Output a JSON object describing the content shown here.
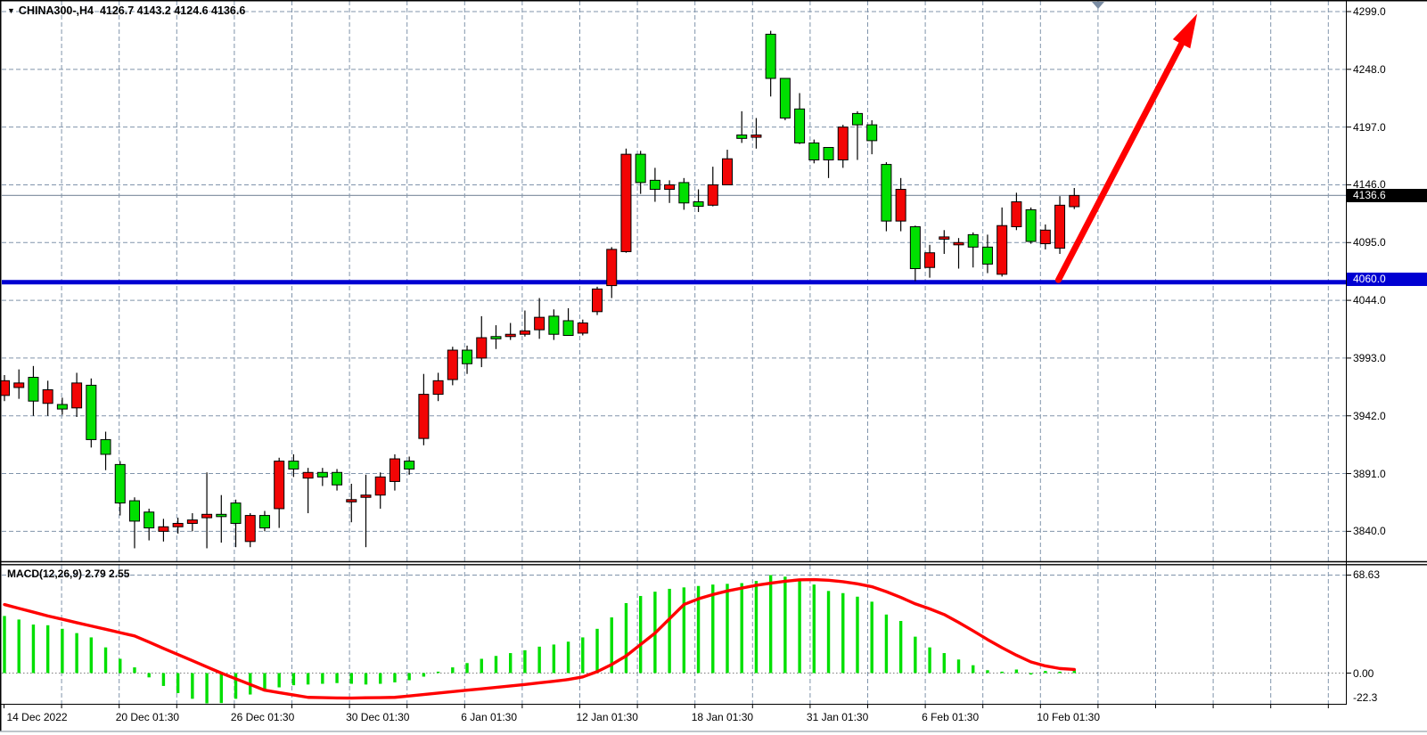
{
  "header": {
    "symbol_period": "CHINA300-,H4",
    "ohlc_values": "4126.7 4143.2 4124.6 4136.6"
  },
  "price_axis": {
    "ticks": [
      "4299.0",
      "4248.0",
      "4197.0",
      "4146.0",
      "4095.0",
      "4044.0",
      "3993.0",
      "3942.0",
      "3891.0",
      "3840.0"
    ],
    "current_badge": "4136.6",
    "level_badge": "4060.0"
  },
  "time_axis": {
    "labels": [
      "14 Dec 2022",
      "20 Dec 01:30",
      "26 Dec 01:30",
      "30 Dec 01:30",
      "6 Jan 01:30",
      "12 Jan 01:30",
      "18 Jan 01:30",
      "31 Jan 01:30",
      "6 Feb 01:30",
      "10 Feb 01:30"
    ]
  },
  "macd": {
    "label": "MACD(12,26,9) 2.79 2.55",
    "axis_ticks": [
      "68.63",
      "0.00",
      "-22.3"
    ]
  },
  "chart_data": {
    "type": "candlestick",
    "title": "CHINA300-,H4",
    "current_bar": {
      "open": 4126.7,
      "high": 4143.2,
      "low": 4124.6,
      "close": 4136.6
    },
    "price_axis_ticks": [
      4299.0,
      4248.0,
      4197.0,
      4146.0,
      4095.0,
      4044.0,
      3993.0,
      3942.0,
      3891.0,
      3840.0
    ],
    "price_range": [
      3815,
      4299
    ],
    "grid": true,
    "colors": {
      "bull": "#f20505",
      "bear": "#00df00",
      "wick": "#000000",
      "grid": "#8094ab",
      "support_line": "#0000d2",
      "current_price_line": "#8a98a8",
      "signal_line": "#ff0000",
      "arrow": "#ff0000",
      "marker": "#7b8da4",
      "badge_current_bg": "#000000",
      "badge_level_bg": "#0000d2",
      "background": "#ffffff"
    },
    "candles_ohlc": [
      [
        3960,
        3978,
        3955,
        3973
      ],
      [
        3967,
        3983,
        3957,
        3971
      ],
      [
        3976,
        3986,
        3942,
        3955
      ],
      [
        3953,
        3973,
        3942,
        3965
      ],
      [
        3952,
        3958,
        3943,
        3948
      ],
      [
        3949,
        3980,
        3941,
        3971
      ],
      [
        3969,
        3975,
        3914,
        3921
      ],
      [
        3921,
        3928,
        3894,
        3908
      ],
      [
        3899,
        3902,
        3854,
        3865
      ],
      [
        3867,
        3870,
        3825,
        3849
      ],
      [
        3857,
        3860,
        3832,
        3843
      ],
      [
        3840,
        3851,
        3831,
        3844
      ],
      [
        3844,
        3852,
        3838,
        3847
      ],
      [
        3847,
        3856,
        3840,
        3850
      ],
      [
        3852,
        3892,
        3825,
        3855
      ],
      [
        3855,
        3872,
        3830,
        3853
      ],
      [
        3865,
        3868,
        3826,
        3847
      ],
      [
        3831,
        3856,
        3826,
        3854
      ],
      [
        3854,
        3858,
        3840,
        3843
      ],
      [
        3860,
        3905,
        3843,
        3902
      ],
      [
        3902,
        3908,
        3888,
        3895
      ],
      [
        3887,
        3896,
        3856,
        3892
      ],
      [
        3892,
        3896,
        3880,
        3888
      ],
      [
        3892,
        3895,
        3876,
        3881
      ],
      [
        3866,
        3882,
        3848,
        3868
      ],
      [
        3870,
        3890,
        3826,
        3872
      ],
      [
        3872,
        3892,
        3860,
        3888
      ],
      [
        3884,
        3908,
        3876,
        3904
      ],
      [
        3902,
        3906,
        3890,
        3895
      ],
      [
        3922,
        3979,
        3916,
        3961
      ],
      [
        3961,
        3980,
        3955,
        3973
      ],
      [
        3974,
        4003,
        3969,
        4000
      ],
      [
        4000,
        4004,
        3979,
        3988
      ],
      [
        3993,
        4030,
        3985,
        4011
      ],
      [
        4012,
        4022,
        4001,
        4010
      ],
      [
        4012,
        4024,
        4009,
        4014
      ],
      [
        4014,
        4035,
        4012,
        4017
      ],
      [
        4018,
        4046,
        4010,
        4029
      ],
      [
        4030,
        4036,
        4009,
        4014
      ],
      [
        4026,
        4037,
        4013,
        4013
      ],
      [
        4015,
        4027,
        4013,
        4024
      ],
      [
        4034,
        4056,
        4031,
        4054
      ],
      [
        4057,
        4091,
        4046,
        4089
      ],
      [
        4087,
        4178,
        4086,
        4173
      ],
      [
        4173,
        4176,
        4138,
        4148
      ],
      [
        4150,
        4161,
        4131,
        4142
      ],
      [
        4142,
        4150,
        4130,
        4146
      ],
      [
        4148,
        4152,
        4124,
        4130
      ],
      [
        4131,
        4142,
        4122,
        4127
      ],
      [
        4128,
        4162,
        4127,
        4146
      ],
      [
        4146,
        4177,
        4146,
        4169
      ],
      [
        4190,
        4211,
        4183,
        4187
      ],
      [
        4188,
        4205,
        4178,
        4190
      ],
      [
        4279,
        4282,
        4224,
        4240
      ],
      [
        4240,
        4240,
        4203,
        4205
      ],
      [
        4213,
        4227,
        4182,
        4183
      ],
      [
        4183,
        4186,
        4165,
        4168
      ],
      [
        4179,
        4179,
        4152,
        4168
      ],
      [
        4168,
        4199,
        4161,
        4197
      ],
      [
        4209,
        4211,
        4168,
        4199
      ],
      [
        4199,
        4203,
        4173,
        4185
      ],
      [
        4164,
        4166,
        4105,
        4114
      ],
      [
        4114,
        4152,
        4105,
        4142
      ],
      [
        4109,
        4110,
        4061,
        4072
      ],
      [
        4073,
        4093,
        4064,
        4086
      ],
      [
        4098,
        4106,
        4085,
        4100
      ],
      [
        4093,
        4099,
        4072,
        4095
      ],
      [
        4102,
        4104,
        4073,
        4091
      ],
      [
        4091,
        4102,
        4068,
        4076
      ],
      [
        4067,
        4126,
        4065,
        4110
      ],
      [
        4109,
        4139,
        4106,
        4131
      ],
      [
        4124,
        4126,
        4094,
        4096
      ],
      [
        4094,
        4111,
        4089,
        4106
      ],
      [
        4090,
        4136,
        4085,
        4128
      ],
      [
        4126.7,
        4143.2,
        4124.6,
        4136.6
      ]
    ],
    "indicator": {
      "name": "MACD(12,26,9)",
      "macd_value": 2.79,
      "signal_value": 2.55,
      "axis_ticks": [
        68.63,
        0.0,
        -22.3
      ],
      "histogram": [
        40,
        37.5,
        34,
        33.5,
        31,
        28,
        25,
        18,
        10,
        4,
        -3,
        -9,
        -14,
        -18,
        -22,
        -21,
        -18,
        -15,
        -12,
        -10,
        -8.5,
        -8,
        -7.5,
        -7,
        -7.5,
        -8,
        -7.5,
        -6.5,
        -5,
        -2.5,
        1,
        4,
        7,
        10,
        12,
        14,
        16,
        18.5,
        20,
        22,
        25,
        31,
        39,
        49,
        54,
        57,
        59,
        60,
        61,
        62,
        62.5,
        63,
        64.5,
        68.63,
        67.5,
        64.5,
        62,
        57.5,
        56,
        53.5,
        50,
        41,
        36.5,
        25.5,
        18,
        14,
        9.5,
        5.5,
        2,
        1,
        2.5,
        -1,
        1.5,
        1,
        2.79
      ],
      "signal": [
        48,
        45.3,
        42.7,
        40,
        37.7,
        35.3,
        33,
        30.7,
        28.3,
        26,
        21.7,
        17.3,
        13,
        8.7,
        4.3,
        0,
        -4,
        -8,
        -12,
        -13.7,
        -15.3,
        -17,
        -17.2,
        -17.4,
        -17.5,
        -17.3,
        -17.2,
        -17,
        -16,
        -15,
        -14,
        -13,
        -12,
        -11,
        -10,
        -9,
        -8,
        -6.8,
        -5.7,
        -4.5,
        -2.7,
        1,
        6,
        12,
        20,
        28,
        38,
        48,
        52,
        55,
        57.5,
        59.5,
        61.5,
        63,
        64.3,
        65.3,
        65.5,
        65,
        64,
        62.5,
        60.5,
        57,
        53,
        48.5,
        45,
        41,
        35.5,
        29.6,
        23.5,
        17.8,
        12.5,
        7.8,
        5,
        3.2,
        2.55
      ]
    },
    "annotations": {
      "support_line": {
        "price": 4060.0,
        "style": "solid",
        "width": 5
      },
      "current_price_line": {
        "price": 4136.6
      },
      "trend_arrow": {
        "from_bar": 72.9,
        "from_price": 4062,
        "to_bar": 82.5,
        "to_price": 4297
      },
      "shift_marker": {
        "type": "triangle-down",
        "at_top": true
      }
    }
  }
}
